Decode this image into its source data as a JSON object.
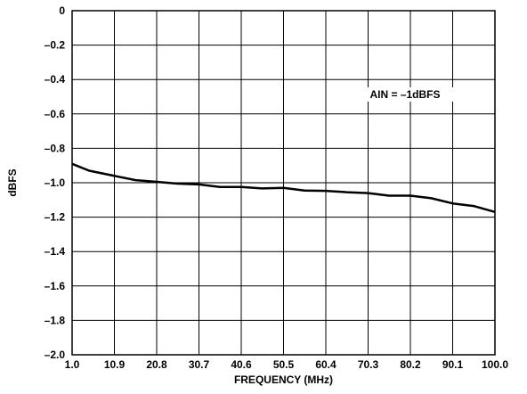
{
  "chart_data": {
    "type": "line",
    "xlabel": "FREQUENCY (MHz)",
    "ylabel": "dBFS",
    "annotation": "AIN = –1dBFS",
    "xlim": [
      1.0,
      100.0
    ],
    "ylim": [
      -2.0,
      0
    ],
    "x_tick_labels": [
      "1.0",
      "10.9",
      "20.8",
      "30.7",
      "40.6",
      "50.5",
      "60.4",
      "70.3",
      "80.2",
      "90.1",
      "100.0"
    ],
    "y_ticks": [
      0,
      -0.2,
      -0.4,
      -0.6,
      -0.8,
      -1.0,
      -1.2,
      -1.4,
      -1.6,
      -1.8,
      -2.0
    ],
    "y_tick_labels": [
      "0",
      "–0.2",
      "–0.4",
      "–0.6",
      "–0.8",
      "–1.0",
      "–1.2",
      "–1.4",
      "–1.6",
      "–1.8",
      "–2.0"
    ],
    "grid": true,
    "series": [
      {
        "x": [
          1.0,
          5.0,
          10.9,
          15.9,
          20.8,
          25.7,
          30.7,
          35.6,
          40.6,
          45.5,
          50.5,
          55.4,
          60.4,
          65.3,
          70.3,
          75.2,
          80.2,
          85.1,
          90.1,
          95.0,
          100.0
        ],
        "y": [
          -0.89,
          -0.93,
          -0.96,
          -0.985,
          -0.995,
          -1.005,
          -1.01,
          -1.025,
          -1.025,
          -1.033,
          -1.03,
          -1.045,
          -1.047,
          -1.055,
          -1.06,
          -1.075,
          -1.075,
          -1.09,
          -1.12,
          -1.135,
          -1.17
        ]
      }
    ]
  }
}
